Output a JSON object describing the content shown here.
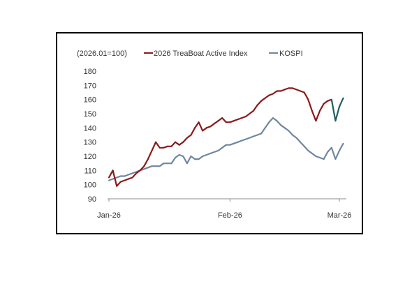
{
  "chart_data": {
    "type": "line",
    "note_label": "(2026.01=100)",
    "ylim": [
      90,
      180
    ],
    "yticks": [
      90,
      100,
      110,
      120,
      130,
      140,
      150,
      160,
      170,
      180
    ],
    "x_tick_labels": [
      "Jan-26",
      "Feb-26",
      "Mar-26"
    ],
    "x_tick_dates": [
      "2026-01-01",
      "2026-02-01",
      "2026-03-01"
    ],
    "x_range": [
      "2026-01-01",
      "2026-03-03"
    ],
    "grid": false,
    "legend_position": "top",
    "series": [
      {
        "name": "2026 TreaBoat Active Index",
        "color": "#8b1a1a",
        "recent_color": "#1f5f5f",
        "recent_from": "2026-02-27",
        "points": [
          [
            "2026-01-01",
            105
          ],
          [
            "2026-01-02",
            110
          ],
          [
            "2026-01-03",
            99
          ],
          [
            "2026-01-04",
            102
          ],
          [
            "2026-01-05",
            103
          ],
          [
            "2026-01-06",
            104
          ],
          [
            "2026-01-07",
            105
          ],
          [
            "2026-01-08",
            108
          ],
          [
            "2026-01-09",
            110
          ],
          [
            "2026-01-10",
            113
          ],
          [
            "2026-01-11",
            118
          ],
          [
            "2026-01-12",
            124
          ],
          [
            "2026-01-13",
            130
          ],
          [
            "2026-01-14",
            126
          ],
          [
            "2026-01-15",
            126
          ],
          [
            "2026-01-16",
            127
          ],
          [
            "2026-01-17",
            127
          ],
          [
            "2026-01-18",
            130
          ],
          [
            "2026-01-19",
            128
          ],
          [
            "2026-01-20",
            130
          ],
          [
            "2026-01-21",
            133
          ],
          [
            "2026-01-22",
            135
          ],
          [
            "2026-01-23",
            140
          ],
          [
            "2026-01-24",
            144
          ],
          [
            "2026-01-25",
            138
          ],
          [
            "2026-01-26",
            140
          ],
          [
            "2026-01-27",
            141
          ],
          [
            "2026-01-28",
            143
          ],
          [
            "2026-01-29",
            145
          ],
          [
            "2026-01-30",
            147
          ],
          [
            "2026-01-31",
            144
          ],
          [
            "2026-02-01",
            144
          ],
          [
            "2026-02-02",
            145
          ],
          [
            "2026-02-03",
            146
          ],
          [
            "2026-02-04",
            147
          ],
          [
            "2026-02-05",
            148
          ],
          [
            "2026-02-06",
            150
          ],
          [
            "2026-02-07",
            152
          ],
          [
            "2026-02-08",
            156
          ],
          [
            "2026-02-09",
            159
          ],
          [
            "2026-02-10",
            161
          ],
          [
            "2026-02-11",
            163
          ],
          [
            "2026-02-12",
            164
          ],
          [
            "2026-02-13",
            166
          ],
          [
            "2026-02-14",
            166
          ],
          [
            "2026-02-15",
            167
          ],
          [
            "2026-02-16",
            168
          ],
          [
            "2026-02-17",
            168
          ],
          [
            "2026-02-18",
            167
          ],
          [
            "2026-02-19",
            166
          ],
          [
            "2026-02-20",
            165
          ],
          [
            "2026-02-21",
            160
          ],
          [
            "2026-02-22",
            152
          ],
          [
            "2026-02-23",
            145
          ],
          [
            "2026-02-24",
            152
          ],
          [
            "2026-02-25",
            157
          ],
          [
            "2026-02-26",
            159
          ],
          [
            "2026-02-27",
            160
          ],
          [
            "2026-02-28",
            145
          ],
          [
            "2026-03-01",
            155
          ],
          [
            "2026-03-02",
            161
          ]
        ]
      },
      {
        "name": "KOSPI",
        "color": "#6f87a0",
        "points": [
          [
            "2026-01-01",
            103
          ],
          [
            "2026-01-02",
            104
          ],
          [
            "2026-01-03",
            105
          ],
          [
            "2026-01-04",
            106
          ],
          [
            "2026-01-05",
            106
          ],
          [
            "2026-01-06",
            107
          ],
          [
            "2026-01-07",
            108
          ],
          [
            "2026-01-08",
            109
          ],
          [
            "2026-01-09",
            110
          ],
          [
            "2026-01-10",
            111
          ],
          [
            "2026-01-11",
            112
          ],
          [
            "2026-01-12",
            113
          ],
          [
            "2026-01-13",
            113
          ],
          [
            "2026-01-14",
            113
          ],
          [
            "2026-01-15",
            115
          ],
          [
            "2026-01-16",
            115
          ],
          [
            "2026-01-17",
            115
          ],
          [
            "2026-01-18",
            119
          ],
          [
            "2026-01-19",
            121
          ],
          [
            "2026-01-20",
            120
          ],
          [
            "2026-01-21",
            115
          ],
          [
            "2026-01-22",
            120
          ],
          [
            "2026-01-23",
            118
          ],
          [
            "2026-01-24",
            118
          ],
          [
            "2026-01-25",
            120
          ],
          [
            "2026-01-26",
            121
          ],
          [
            "2026-01-27",
            122
          ],
          [
            "2026-01-28",
            123
          ],
          [
            "2026-01-29",
            124
          ],
          [
            "2026-01-30",
            126
          ],
          [
            "2026-01-31",
            128
          ],
          [
            "2026-02-01",
            128
          ],
          [
            "2026-02-02",
            129
          ],
          [
            "2026-02-03",
            130
          ],
          [
            "2026-02-04",
            131
          ],
          [
            "2026-02-05",
            132
          ],
          [
            "2026-02-06",
            133
          ],
          [
            "2026-02-07",
            134
          ],
          [
            "2026-02-08",
            135
          ],
          [
            "2026-02-09",
            136
          ],
          [
            "2026-02-10",
            140
          ],
          [
            "2026-02-11",
            144
          ],
          [
            "2026-02-12",
            147
          ],
          [
            "2026-02-13",
            145
          ],
          [
            "2026-02-14",
            142
          ],
          [
            "2026-02-15",
            140
          ],
          [
            "2026-02-16",
            138
          ],
          [
            "2026-02-17",
            135
          ],
          [
            "2026-02-18",
            133
          ],
          [
            "2026-02-19",
            130
          ],
          [
            "2026-02-20",
            127
          ],
          [
            "2026-02-21",
            124
          ],
          [
            "2026-02-22",
            122
          ],
          [
            "2026-02-23",
            120
          ],
          [
            "2026-02-24",
            119
          ],
          [
            "2026-02-25",
            118
          ],
          [
            "2026-02-26",
            123
          ],
          [
            "2026-02-27",
            126
          ],
          [
            "2026-02-28",
            118
          ],
          [
            "2026-03-01",
            124
          ],
          [
            "2026-03-02",
            129
          ]
        ]
      }
    ]
  }
}
